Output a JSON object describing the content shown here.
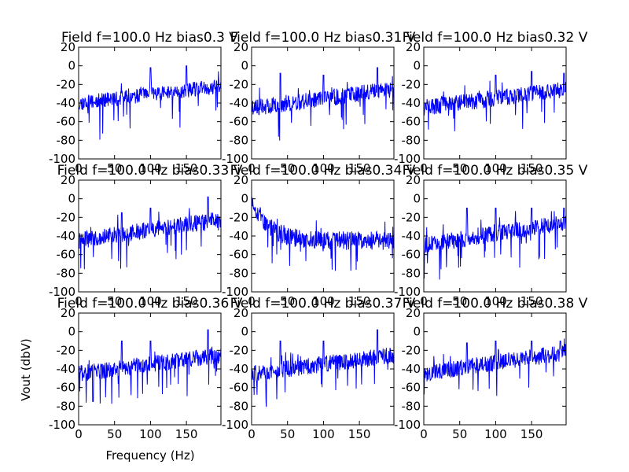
{
  "figure": {
    "xlabel": "Frequency (Hz)",
    "ylabel": "Vout (dbV)"
  },
  "chart_data": [
    {
      "type": "line",
      "title": "Field f=100.0 Hz bias0.3 V",
      "xlim": [
        0,
        198
      ],
      "ylim": [
        -100,
        20
      ],
      "xticks": [
        0,
        50,
        100,
        150
      ],
      "yticks": [
        -100,
        -80,
        -60,
        -40,
        -20,
        0,
        20
      ],
      "series": [
        {
          "color": "#0000ff",
          "profile": "rising",
          "start": -40,
          "end": -22,
          "noise": 8,
          "seed": 11,
          "spikes": [
            [
              100,
              -2
            ],
            [
              150,
              0
            ]
          ]
        }
      ]
    },
    {
      "type": "line",
      "title": "Field f=100.0 Hz bias0.31 V",
      "xlim": [
        0,
        198
      ],
      "ylim": [
        -100,
        20
      ],
      "xticks": [
        0,
        50,
        100,
        150
      ],
      "yticks": [
        -100,
        -80,
        -60,
        -40,
        -20,
        0,
        20
      ],
      "series": [
        {
          "color": "#0000ff",
          "profile": "rising",
          "start": -45,
          "end": -25,
          "noise": 9,
          "seed": 23,
          "spikes": [
            [
              40,
              -8
            ],
            [
              100,
              -10
            ],
            [
              175,
              -2
            ]
          ]
        }
      ]
    },
    {
      "type": "line",
      "title": "Field f=100.0 Hz bias0.32 V",
      "xlim": [
        0,
        198
      ],
      "ylim": [
        -100,
        20
      ],
      "xticks": [
        0,
        50,
        100,
        150
      ],
      "yticks": [
        -100,
        -80,
        -60,
        -40,
        -20,
        0,
        20
      ],
      "series": [
        {
          "color": "#0000ff",
          "profile": "rising",
          "start": -45,
          "end": -25,
          "noise": 9,
          "seed": 37,
          "spikes": [
            [
              100,
              -10
            ],
            [
              150,
              -6
            ],
            [
              195,
              -8
            ]
          ]
        }
      ]
    },
    {
      "type": "line",
      "title": "Field f=100.0 Hz bias0.33 V",
      "xlim": [
        0,
        198
      ],
      "ylim": [
        -100,
        20
      ],
      "xticks": [
        0,
        50,
        100,
        150
      ],
      "yticks": [
        -100,
        -80,
        -60,
        -40,
        -20,
        0,
        20
      ],
      "series": [
        {
          "color": "#0000ff",
          "profile": "rising",
          "start": -45,
          "end": -22,
          "noise": 9,
          "seed": 41,
          "spikes": [
            [
              60,
              -15
            ],
            [
              100,
              -10
            ],
            [
              180,
              2
            ]
          ]
        }
      ]
    },
    {
      "type": "line",
      "title": "Field f=100.0 Hz bias0.34 V",
      "xlim": [
        0,
        198
      ],
      "ylim": [
        -100,
        20
      ],
      "xticks": [
        0,
        50,
        100,
        150
      ],
      "yticks": [
        -100,
        -80,
        -60,
        -40,
        -20,
        0,
        20
      ],
      "series": [
        {
          "color": "#0000ff",
          "profile": "decay",
          "start": 0,
          "end": -45,
          "noise": 10,
          "seed": 53,
          "spikes": []
        }
      ]
    },
    {
      "type": "line",
      "title": "Field f=100.0 Hz bias0.35 V",
      "xlim": [
        0,
        198
      ],
      "ylim": [
        -100,
        20
      ],
      "xticks": [
        0,
        50,
        100,
        150
      ],
      "yticks": [
        -100,
        -80,
        -60,
        -40,
        -20,
        0,
        20
      ],
      "series": [
        {
          "color": "#0000ff",
          "profile": "rising",
          "start": -50,
          "end": -25,
          "noise": 9,
          "seed": 67,
          "spikes": [
            [
              60,
              -10
            ],
            [
              100,
              -10
            ],
            [
              150,
              -10
            ],
            [
              195,
              -10
            ]
          ]
        }
      ]
    },
    {
      "type": "line",
      "title": "Field f=100.0 Hz bias0.36 V",
      "xlim": [
        0,
        198
      ],
      "ylim": [
        -100,
        20
      ],
      "xticks": [
        0,
        50,
        100,
        150
      ],
      "yticks": [
        -100,
        -80,
        -60,
        -40,
        -20,
        0,
        20
      ],
      "series": [
        {
          "color": "#0000ff",
          "profile": "rising",
          "start": -45,
          "end": -25,
          "noise": 9,
          "seed": 71,
          "spikes": [
            [
              20,
              -75
            ],
            [
              60,
              -10
            ],
            [
              100,
              -10
            ],
            [
              180,
              2
            ]
          ]
        }
      ]
    },
    {
      "type": "line",
      "title": "Field f=100.0 Hz bias0.37 V",
      "xlim": [
        0,
        198
      ],
      "ylim": [
        -100,
        20
      ],
      "xticks": [
        0,
        50,
        100,
        150
      ],
      "yticks": [
        -100,
        -80,
        -60,
        -40,
        -20,
        0,
        20
      ],
      "series": [
        {
          "color": "#0000ff",
          "profile": "rising",
          "start": -45,
          "end": -25,
          "noise": 9,
          "seed": 83,
          "spikes": [
            [
              40,
              -10
            ],
            [
              100,
              -10
            ],
            [
              175,
              2
            ]
          ]
        }
      ]
    },
    {
      "type": "line",
      "title": "Field f=100.0 Hz bias0.38 V",
      "xlim": [
        0,
        198
      ],
      "ylim": [
        -100,
        20
      ],
      "xticks": [
        0,
        50,
        100,
        150
      ],
      "yticks": [
        -100,
        -80,
        -60,
        -40,
        -20,
        0,
        20
      ],
      "series": [
        {
          "color": "#0000ff",
          "profile": "rising",
          "start": -45,
          "end": -22,
          "noise": 9,
          "seed": 97,
          "spikes": [
            [
              60,
              -12
            ],
            [
              100,
              -10
            ],
            [
              150,
              -10
            ],
            [
              190,
              -10
            ]
          ]
        }
      ]
    }
  ]
}
